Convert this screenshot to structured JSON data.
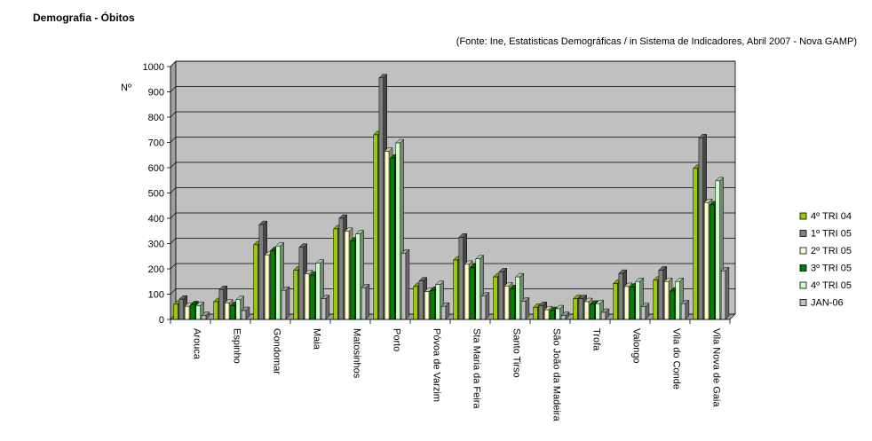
{
  "title": "Demografia - Óbitos",
  "subtitle": "(Fonte: Ine, Estatisticas Demográficas / in Sistema de Indicadores, Abril 2007 - Nova GAMP)",
  "chart_data": {
    "type": "bar",
    "title": "Demografia - Óbitos",
    "ylabel": "Nº",
    "xlabel": "",
    "ylim": [
      0,
      1000
    ],
    "yticks": [
      0,
      100,
      200,
      300,
      400,
      500,
      600,
      700,
      800,
      900,
      1000
    ],
    "grid": true,
    "legend_position": "right",
    "categories": [
      "Arouca",
      "Espinho",
      "Gondomar",
      "Maia",
      "Matosinhos",
      "Porto",
      "Póvoa de Varzim",
      "Sta Maria da Feira",
      "Santo Tirso",
      "São João da Madeira",
      "Trofa",
      "Valongo",
      "Vila do Conde",
      "Vila Nova de Gaia"
    ],
    "series": [
      {
        "name": "4º TRI 04",
        "color": "#99cc00",
        "values": [
          60,
          70,
          295,
          195,
          358,
          730,
          130,
          235,
          168,
          48,
          82,
          142,
          155,
          597
        ]
      },
      {
        "name": "1º TRI 05",
        "color": "#808080",
        "values": [
          80,
          118,
          375,
          285,
          400,
          955,
          152,
          325,
          188,
          55,
          82,
          182,
          195,
          718
        ]
      },
      {
        "name": "2º TRI 05",
        "color": "#ffffcc",
        "values": [
          52,
          65,
          255,
          180,
          348,
          665,
          110,
          218,
          132,
          38,
          70,
          130,
          150,
          462
        ]
      },
      {
        "name": "3º TRI 05",
        "color": "#008000",
        "values": [
          58,
          55,
          272,
          175,
          310,
          638,
          115,
          205,
          122,
          35,
          60,
          128,
          112,
          453
        ]
      },
      {
        "name": "4º TRI 05",
        "color": "#ccffcc",
        "values": [
          55,
          78,
          290,
          222,
          338,
          698,
          138,
          240,
          168,
          42,
          62,
          150,
          150,
          548
        ]
      },
      {
        "name": "JAN-06",
        "color": "#c0c0c0",
        "values": [
          15,
          35,
          115,
          82,
          125,
          262,
          52,
          92,
          72,
          15,
          28,
          50,
          62,
          192
        ]
      }
    ]
  }
}
